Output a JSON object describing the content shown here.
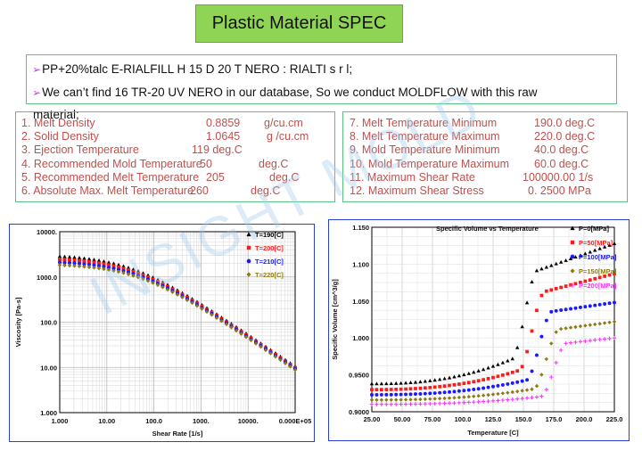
{
  "title": "Plastic Material SPEC",
  "intro": {
    "line1": "PP+20%talc E-RIALFILL H 15 D 20 T NERO : RIALTI s r l;",
    "line2": "We can’t find 16 TR-20 UV NERO in our database, So we conduct MOLDFLOW with this raw",
    "line2_wrap": "material;"
  },
  "specs_left": [
    {
      "label": "1. Melt Density",
      "value": "0.8859",
      "unit": "g/cu.cm"
    },
    {
      "label": "2. Solid Density",
      "value": "1.0645",
      "unit": "g /cu.cm"
    },
    {
      "label": "3. Ejection Temperature",
      "value": "119 deg.C",
      "unit": ""
    },
    {
      "label": "4. Recommended Mold Temperature",
      "value": "50",
      "unit": "deg.C"
    },
    {
      "label": "5. Recommended Melt Temperature",
      "value": "205",
      "unit": "deg.C"
    },
    {
      "label": "6. Absolute Max. Melt Temperature",
      "value": "260",
      "unit": "deg.C"
    }
  ],
  "specs_right": [
    {
      "label": "7. Melt  Temperature Minimum",
      "value": "190.0 deg.C"
    },
    {
      "label": "8. Melt  Temperature Maximum",
      "value": "220.0 deg.C"
    },
    {
      "label": "9. Mold  Temperature Minimum",
      "value": "40.0 deg.C"
    },
    {
      "label": "10. Mold  Temperature Maximum",
      "value": "60.0 deg.C"
    },
    {
      "label": "11. Maximum Shear Rate",
      "value": "100000.00 1/s"
    },
    {
      "label": "12. Maximum Shear Stress",
      "value": "0. 2500 MPa"
    }
  ],
  "watermark": "INSIGHT MOLD",
  "colors": {
    "black": "#000000",
    "red": "#ff1a1a",
    "blue": "#1a1aff",
    "olive": "#8c7a14",
    "magenta": "#ff33ff"
  },
  "chart_data": [
    {
      "type": "scatter",
      "title": "",
      "xlabel": "Shear Rate [1/s]",
      "ylabel": "Viscosity [Pa-s]",
      "xscale": "log",
      "yscale": "log",
      "xlim": [
        1,
        100000
      ],
      "ylim": [
        1,
        10000
      ],
      "xticks": [
        "1.000",
        "10.00",
        "100.0",
        "1000.",
        "10000.",
        "0.000E+05"
      ],
      "yticks": [
        "1.000",
        "10.00",
        "100.0",
        "1000.0",
        "10000."
      ],
      "legend": "top-right",
      "series": [
        {
          "name": "T=190[C]",
          "color": "#000000",
          "marker": "triangle",
          "eta0": 3100,
          "tau": 0.032,
          "n": 0.295
        },
        {
          "name": "T=200[C]",
          "color": "#ff1a1a",
          "marker": "square",
          "eta0": 2650,
          "tau": 0.028,
          "n": 0.295
        },
        {
          "name": "T=210[C]",
          "color": "#1a1aff",
          "marker": "circle",
          "eta0": 2250,
          "tau": 0.024,
          "n": 0.295
        },
        {
          "name": "T=220[C]",
          "color": "#8c7a14",
          "marker": "diamond",
          "eta0": 1950,
          "tau": 0.021,
          "n": 0.295
        }
      ]
    },
    {
      "type": "scatter",
      "title": "Specific Volume vs Temperature",
      "xlabel": "Temperature [C]",
      "ylabel": "Specific Volume [cm^3/g]",
      "xlim": [
        25,
        225
      ],
      "ylim": [
        0.9,
        1.15
      ],
      "xticks": [
        "25.00",
        "50.00",
        "75.00",
        "100.0",
        "125.0",
        "150.0",
        "175.0",
        "200.0",
        "225.0"
      ],
      "yticks": [
        "0.9000",
        "0.9500",
        "1.000",
        "1.050",
        "1.100",
        "1.150"
      ],
      "legend": "top-right",
      "series": [
        {
          "name": "P=0[MPa]",
          "color": "#000000",
          "marker": "triangle",
          "v25": 0.938,
          "vs": 0.985,
          "tt": 158,
          "vl": 1.092,
          "v225": 1.128
        },
        {
          "name": "P=50[MPa]",
          "color": "#ff1a1a",
          "marker": "square",
          "v25": 0.93,
          "vs": 0.966,
          "tt": 164,
          "vl": 1.063,
          "v225": 1.087
        },
        {
          "name": "P=100[MPa]",
          "color": "#1a1aff",
          "marker": "circle",
          "v25": 0.923,
          "vs": 0.95,
          "tt": 170,
          "vl": 1.036,
          "v225": 1.048
        },
        {
          "name": "P=150[MPa]",
          "color": "#8c7a14",
          "marker": "diamond",
          "v25": 0.916,
          "vs": 0.936,
          "tt": 176,
          "vl": 1.012,
          "v225": 1.022
        },
        {
          "name": "P=200[MPa]",
          "color": "#ff33ff",
          "marker": "plus",
          "v25": 0.91,
          "vs": 0.924,
          "tt": 182,
          "vl": 0.993,
          "v225": 1.0
        }
      ]
    }
  ]
}
